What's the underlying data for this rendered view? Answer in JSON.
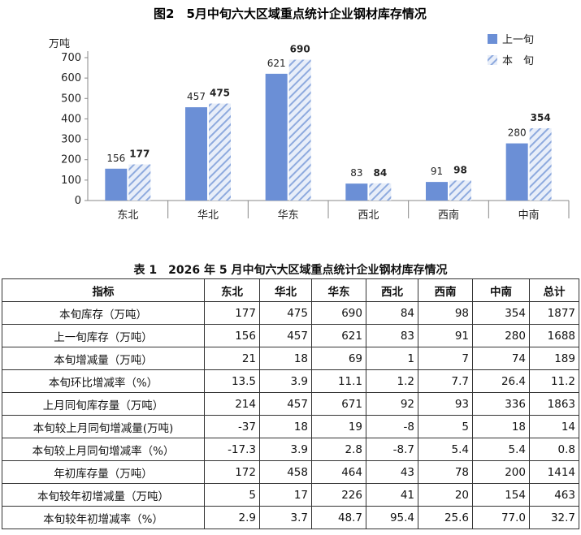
{
  "chart_data": {
    "type": "bar",
    "title": "图2　5月中旬六大区域重点统计企业钢材库存情况",
    "ylabel": "万吨",
    "ylim": [
      0,
      700
    ],
    "yticks": [
      0,
      100,
      200,
      300,
      400,
      500,
      600,
      700
    ],
    "categories": [
      "东北",
      "华北",
      "华东",
      "西北",
      "西南",
      "中南"
    ],
    "series": [
      {
        "name": "上一旬",
        "values": [
          156,
          457,
          621,
          83,
          91,
          280
        ],
        "color": "#6b8fd6"
      },
      {
        "name": "本　旬",
        "values": [
          177,
          475,
          690,
          84,
          98,
          354
        ],
        "color": "#a8bfe8"
      }
    ],
    "legend": "top-right",
    "grid": false
  },
  "table": {
    "title": "表 1　2026 年 5 月中旬六大区域重点统计企业钢材库存情况",
    "headers": [
      "指标",
      "东北",
      "华北",
      "华东",
      "西北",
      "西南",
      "中南",
      "总计"
    ],
    "rows": [
      [
        "本旬库存（万吨）",
        "177",
        "475",
        "690",
        "84",
        "98",
        "354",
        "1877"
      ],
      [
        "上一旬库存（万吨）",
        "156",
        "457",
        "621",
        "83",
        "91",
        "280",
        "1688"
      ],
      [
        "本旬增减量（万吨）",
        "21",
        "18",
        "69",
        "1",
        "7",
        "74",
        "189"
      ],
      [
        "本旬环比增减率（%）",
        "13.5",
        "3.9",
        "11.1",
        "1.2",
        "7.7",
        "26.4",
        "11.2"
      ],
      [
        "上月同旬库存量（万吨）",
        "214",
        "457",
        "671",
        "92",
        "93",
        "336",
        "1863"
      ],
      [
        "本旬较上月同旬增减量(万吨)",
        "-37",
        "18",
        "19",
        "-8",
        "5",
        "18",
        "14"
      ],
      [
        "本旬较上月同旬增减率（%）",
        "-17.3",
        "3.9",
        "2.8",
        "-8.7",
        "5.4",
        "5.4",
        "0.8"
      ],
      [
        "年初库存量（万吨）",
        "172",
        "458",
        "464",
        "43",
        "78",
        "200",
        "1414"
      ],
      [
        "本旬较年初增减量（万吨）",
        "5",
        "17",
        "226",
        "41",
        "20",
        "154",
        "463"
      ],
      [
        "本旬较年初增减率（%）",
        "2.9",
        "3.7",
        "48.7",
        "95.4",
        "25.6",
        "77.0",
        "32.7"
      ]
    ]
  }
}
